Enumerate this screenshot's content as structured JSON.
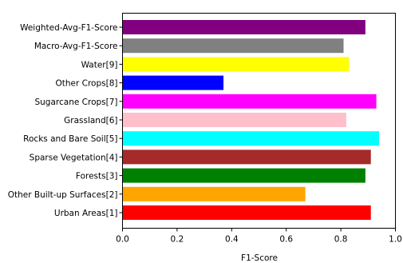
{
  "chart_data": {
    "type": "bar",
    "orientation": "horizontal",
    "categories": [
      "Urban Areas[1]",
      "Other Built-up Surfaces[2]",
      "Forests[3]",
      "Sparse Vegetation[4]",
      "Rocks and Bare Soil[5]",
      "Grassland[6]",
      "Sugarcane Crops[7]",
      "Other Crops[8]",
      "Water[9]",
      "Macro-Avg-F1-Score",
      "Weighted-Avg-F1-Score"
    ],
    "values": [
      0.91,
      0.67,
      0.89,
      0.91,
      0.94,
      0.82,
      0.93,
      0.37,
      0.83,
      0.81,
      0.89
    ],
    "colors": [
      "#ff0000",
      "#ffa500",
      "#008000",
      "#a52a2a",
      "#00ffff",
      "#ffc0cb",
      "#ff00ff",
      "#0000ff",
      "#ffff00",
      "#808080",
      "#800080"
    ],
    "title": "",
    "xlabel": "F1-Score",
    "ylabel": "",
    "xlim": [
      0.0,
      1.0
    ],
    "xticks": [
      "0.0",
      "0.2",
      "0.4",
      "0.6",
      "0.8",
      "1.0"
    ],
    "grid": false,
    "legend": "none"
  }
}
